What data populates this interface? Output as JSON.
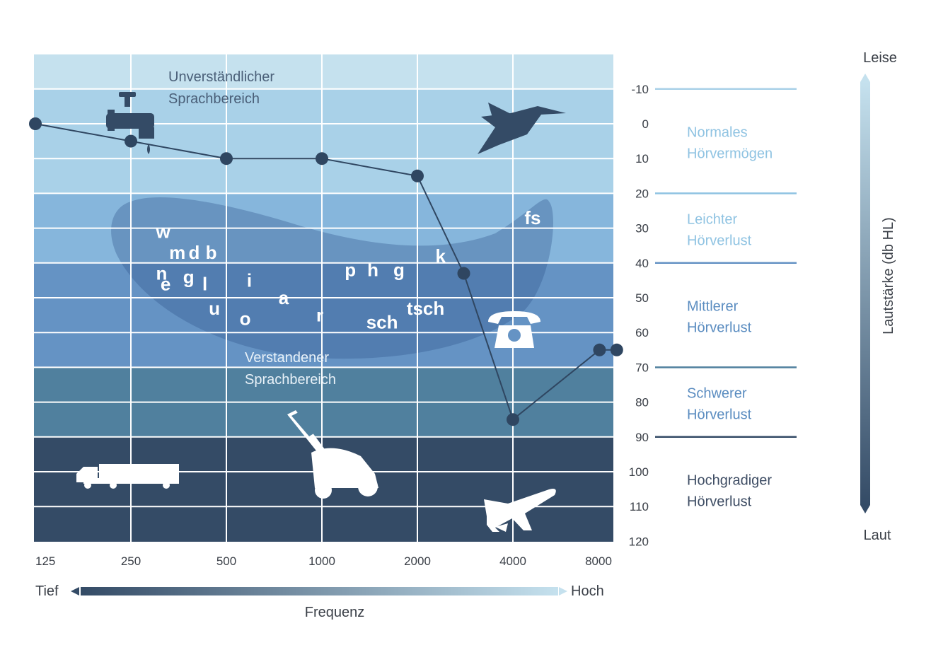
{
  "chart_data": {
    "type": "line",
    "x_axis": {
      "label": "Frequenz",
      "scale": "log2",
      "ticks": [
        125,
        250,
        500,
        1000,
        2000,
        4000,
        8000
      ],
      "low_label": "Tief",
      "high_label": "Hoch"
    },
    "y_axis": {
      "label": "Lautstärke (db HL)",
      "range": [
        -20,
        120
      ],
      "inverted": true,
      "ticks": [
        -10,
        0,
        10,
        20,
        30,
        40,
        50,
        60,
        70,
        80,
        90,
        100,
        110,
        120
      ],
      "top_label": "Leise",
      "bottom_label": "Laut"
    },
    "series": [
      {
        "values": [
          {
            "x": 125,
            "y": 0
          },
          {
            "x": 250,
            "y": 5
          },
          {
            "x": 500,
            "y": 10
          },
          {
            "x": 1000,
            "y": 10
          },
          {
            "x": 2000,
            "y": 15
          },
          {
            "x": 2800,
            "y": 43
          },
          {
            "x": 4000,
            "y": 85
          },
          {
            "x": 7500,
            "y": 65
          },
          {
            "x": 8500,
            "y": 65
          }
        ]
      }
    ],
    "hearing_categories": [
      {
        "label": "Normales\nHörvermögen",
        "from": -10,
        "to": 20
      },
      {
        "label": "Leichter\nHörverlust",
        "from": 20,
        "to": 40
      },
      {
        "label": "Mittlerer\nHörverlust",
        "from": 40,
        "to": 70
      },
      {
        "label": "Schwerer\nHörverlust",
        "from": 70,
        "to": 90
      },
      {
        "label": "Hochgradiger\nHörverlust",
        "from": 90,
        "to": 120
      }
    ],
    "region_labels": {
      "unintelligible": "Unverständlicher\nSprachbereich",
      "understood": "Verstandener\nSprachbereich"
    },
    "phonemes": [
      {
        "text": "w",
        "x": 300,
        "y": 31
      },
      {
        "text": "m",
        "x": 330,
        "y": 37
      },
      {
        "text": "d",
        "x": 380,
        "y": 37
      },
      {
        "text": "b",
        "x": 430,
        "y": 37
      },
      {
        "text": "n",
        "x": 300,
        "y": 43
      },
      {
        "text": "g",
        "x": 365,
        "y": 44
      },
      {
        "text": "e",
        "x": 310,
        "y": 46
      },
      {
        "text": "l",
        "x": 420,
        "y": 46
      },
      {
        "text": "u",
        "x": 440,
        "y": 53
      },
      {
        "text": "i",
        "x": 580,
        "y": 45
      },
      {
        "text": "o",
        "x": 550,
        "y": 56
      },
      {
        "text": "a",
        "x": 730,
        "y": 50
      },
      {
        "text": "r",
        "x": 960,
        "y": 55
      },
      {
        "text": "p",
        "x": 1180,
        "y": 42
      },
      {
        "text": "h",
        "x": 1390,
        "y": 42
      },
      {
        "text": "g",
        "x": 1680,
        "y": 42
      },
      {
        "text": "sch",
        "x": 1380,
        "y": 57
      },
      {
        "text": "tsch",
        "x": 1850,
        "y": 53
      },
      {
        "text": "k",
        "x": 2280,
        "y": 38
      },
      {
        "text": "fs",
        "x": 4350,
        "y": 27
      }
    ],
    "icons": [
      "faucet-icon",
      "hummingbird-icon",
      "telephone-icon",
      "truck-icon",
      "lawnmower-icon",
      "airplane-icon"
    ],
    "colors": {
      "band_lightest": "#c5e1ee",
      "band_light": "#a9d1e8",
      "band_mild": "#86b6dc",
      "band_mid": "#6593c4",
      "band_severe": "#50809e",
      "band_profound": "#344b66",
      "line": "#2f4661",
      "label_light": "#8fc3e2",
      "label_mid": "#5a8cc0",
      "label_dark": "#3d4c63"
    }
  }
}
